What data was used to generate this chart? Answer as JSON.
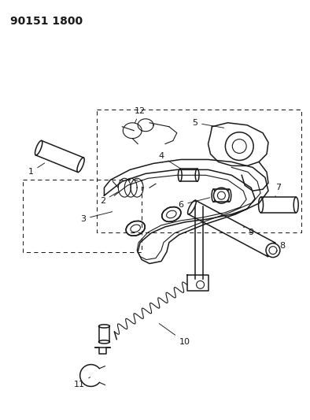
{
  "title": "90151 1800",
  "bg": "#ffffff",
  "lc": "#1a1a1a",
  "figsize": [
    3.94,
    5.33
  ],
  "dpi": 100
}
